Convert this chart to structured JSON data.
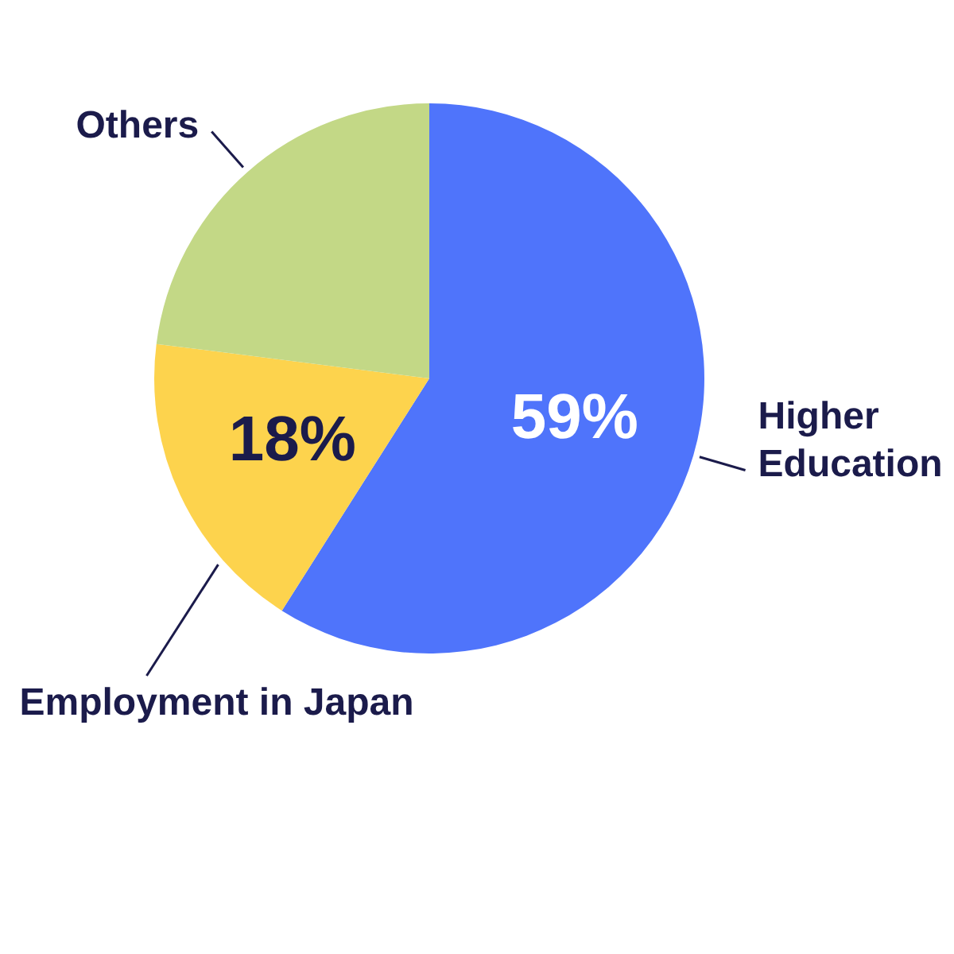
{
  "chart_data": {
    "type": "pie",
    "categories": [
      "Higher Education",
      "Employment in Japan",
      "Others"
    ],
    "values": [
      59,
      18,
      23
    ],
    "colors": [
      "#4f74fb",
      "#fdd34d",
      "#c3d886"
    ],
    "value_labels": [
      "59%",
      "18%",
      null
    ],
    "legend": false
  }
}
